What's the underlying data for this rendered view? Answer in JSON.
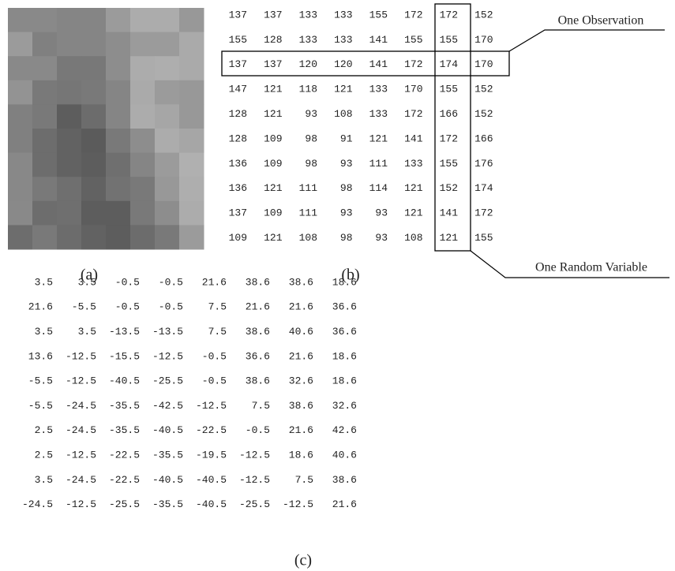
{
  "panel_a": {
    "label": "(a)"
  },
  "panel_b": {
    "label": "(b)",
    "observation_label": "One Observation",
    "variable_label": "One Random Variable",
    "rows": [
      [
        137,
        137,
        133,
        133,
        155,
        172,
        172,
        152
      ],
      [
        155,
        128,
        133,
        133,
        141,
        155,
        155,
        170
      ],
      [
        137,
        137,
        120,
        120,
        141,
        172,
        174,
        170
      ],
      [
        147,
        121,
        118,
        121,
        133,
        170,
        155,
        152
      ],
      [
        128,
        121,
        93,
        108,
        133,
        172,
        166,
        152
      ],
      [
        128,
        109,
        98,
        91,
        121,
        141,
        172,
        166
      ],
      [
        136,
        109,
        98,
        93,
        111,
        133,
        155,
        176
      ],
      [
        136,
        121,
        111,
        98,
        114,
        121,
        152,
        174
      ],
      [
        137,
        109,
        111,
        93,
        93,
        121,
        141,
        172
      ],
      [
        109,
        121,
        108,
        98,
        93,
        108,
        121,
        155
      ]
    ]
  },
  "panel_c": {
    "label": "(c)",
    "rows": [
      [
        3.5,
        3.5,
        -0.5,
        -0.5,
        21.6,
        38.6,
        38.6,
        18.6
      ],
      [
        21.6,
        -5.5,
        -0.5,
        -0.5,
        7.5,
        21.6,
        21.6,
        36.6
      ],
      [
        3.5,
        3.5,
        -13.5,
        -13.5,
        7.5,
        38.6,
        40.6,
        36.6
      ],
      [
        13.6,
        -12.5,
        -15.5,
        -12.5,
        -0.5,
        36.6,
        21.6,
        18.6
      ],
      [
        -5.5,
        -12.5,
        -40.5,
        -25.5,
        -0.5,
        38.6,
        32.6,
        18.6
      ],
      [
        -5.5,
        -24.5,
        -35.5,
        -42.5,
        -12.5,
        7.5,
        38.6,
        32.6
      ],
      [
        2.5,
        -24.5,
        -35.5,
        -40.5,
        -22.5,
        -0.5,
        21.6,
        42.6
      ],
      [
        2.5,
        -12.5,
        -22.5,
        -35.5,
        -19.5,
        -12.5,
        18.6,
        40.6
      ],
      [
        3.5,
        -24.5,
        -22.5,
        -40.5,
        -40.5,
        -12.5,
        7.5,
        38.6
      ],
      [
        -24.5,
        -12.5,
        -25.5,
        -35.5,
        -40.5,
        -25.5,
        -12.5,
        21.6
      ]
    ]
  }
}
